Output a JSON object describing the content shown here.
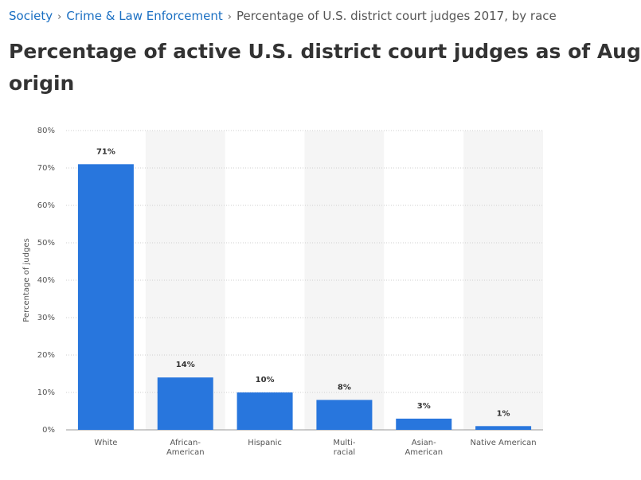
{
  "breadcrumb": [
    "Society",
    "Crime & Law Enforcement",
    "Percentage of U.S. district court judges 2017, by race"
  ],
  "heading": {
    "lines": [
      "Percentage of active U.S. district court judges as of Aug",
      "origin"
    ]
  },
  "chart_data": {
    "type": "bar",
    "y_label": "Percentage of judges",
    "categories": [
      "White",
      "African-American",
      "Hispanic",
      "Multi-racial",
      "Asian-American",
      "Native American"
    ],
    "values": [
      71,
      14,
      10,
      8,
      3,
      1
    ],
    "value_labels": [
      "71%",
      "14%",
      "10%",
      "8%",
      "3%",
      "1%"
    ],
    "color": "#2876dd",
    "ylim": [
      0,
      80
    ],
    "yticks": [
      {
        "value": 0,
        "label": "0%"
      },
      {
        "value": 10,
        "label": "10%"
      },
      {
        "value": 20,
        "label": "20%"
      },
      {
        "value": 30,
        "label": "30%"
      },
      {
        "value": 40,
        "label": "40%"
      },
      {
        "value": 50,
        "label": "50%"
      },
      {
        "value": 60,
        "label": "60%"
      },
      {
        "value": 70,
        "label": "70%"
      },
      {
        "value": 80,
        "label": "80%"
      }
    ],
    "grid": true
  }
}
